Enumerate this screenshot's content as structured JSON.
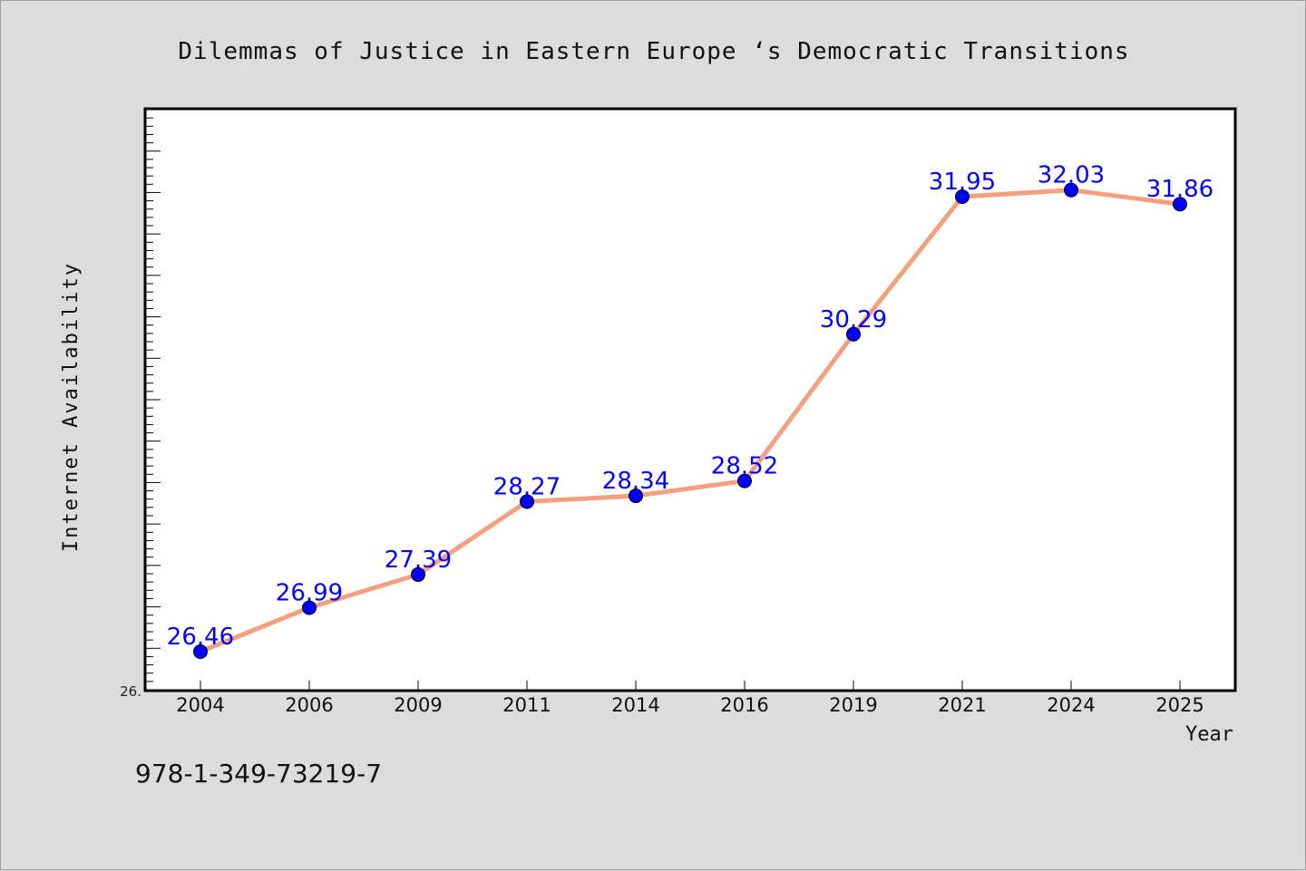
{
  "chart_data": {
    "type": "line",
    "title": "Dilemmas of Justice in Eastern Europe ‘s Democratic Transitions",
    "xlabel": "Year",
    "ylabel": "Internet Availability",
    "categories": [
      "2004",
      "2006",
      "2009",
      "2011",
      "2014",
      "2016",
      "2019",
      "2021",
      "2024",
      "2025"
    ],
    "series": [
      {
        "values": [
          26.46,
          26.99,
          27.39,
          28.27,
          28.34,
          28.52,
          30.29,
          31.95,
          32.03,
          31.86
        ],
        "value_labels": [
          "26.46",
          "26.99",
          "27.39",
          "28.27",
          "28.34",
          "28.52",
          "30.29",
          "31.95",
          "32.03",
          "31.86"
        ]
      }
    ],
    "ylim": [
      26.0,
      33.0
    ],
    "y_tick_labels": [
      "26."
    ],
    "grid": false,
    "line_color": "#f4a07f",
    "marker_color": "#0000ff",
    "label_color": "#0000ff"
  },
  "footer": {
    "isbn": "978-1-349-73219-7"
  }
}
